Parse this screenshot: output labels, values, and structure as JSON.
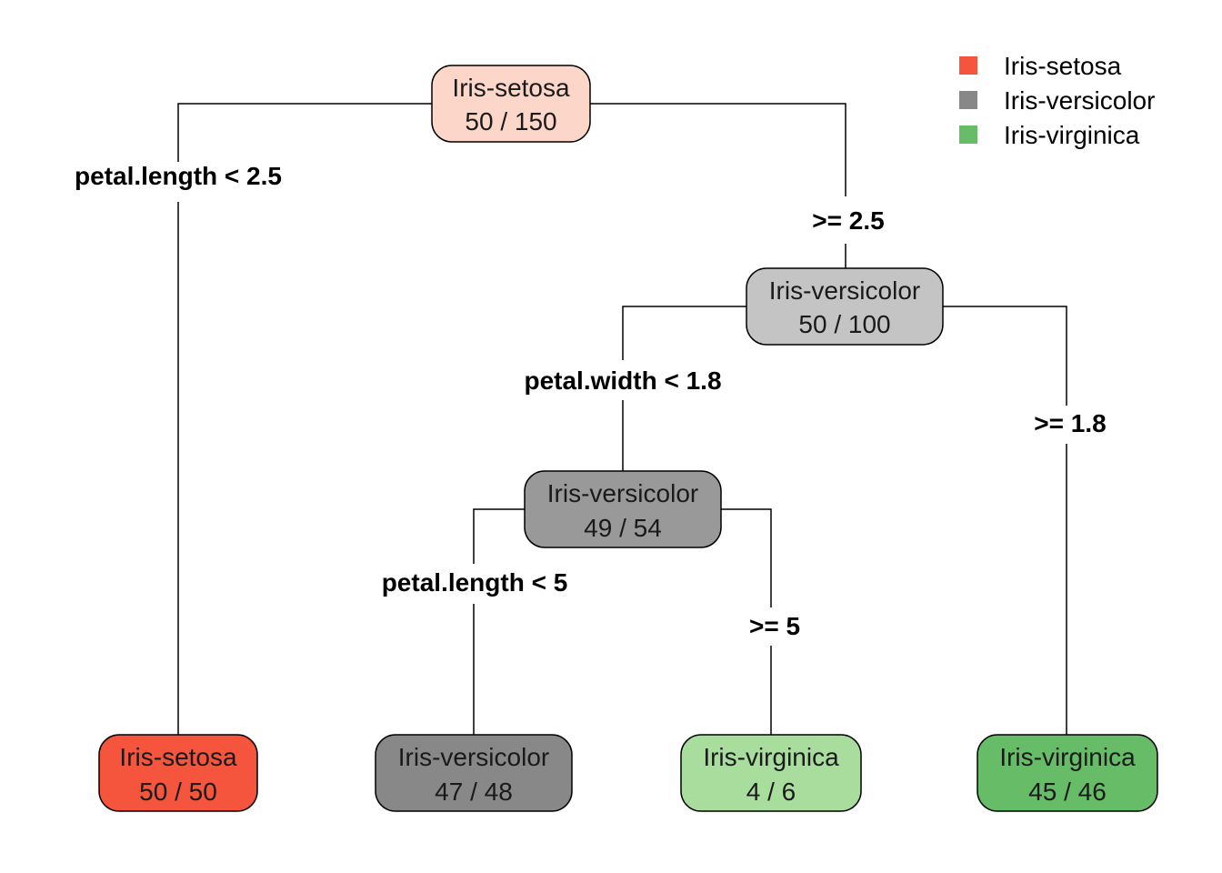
{
  "legend": [
    {
      "label": "Iris-setosa",
      "color": "#F5553C"
    },
    {
      "label": "Iris-versicolor",
      "color": "#888888"
    },
    {
      "label": "Iris-virginica",
      "color": "#67BC67"
    }
  ],
  "nodes": {
    "root": {
      "class": "Iris-setosa",
      "counts": "50 / 150",
      "fill": "#FCD6C8"
    },
    "n2": {
      "class": "Iris-versicolor",
      "counts": "50 / 100",
      "fill": "#C4C4C4"
    },
    "n3": {
      "class": "Iris-versicolor",
      "counts": "49 / 54",
      "fill": "#999999"
    },
    "leaf1": {
      "class": "Iris-setosa",
      "counts": "50 / 50",
      "fill": "#F5553C"
    },
    "leaf2": {
      "class": "Iris-versicolor",
      "counts": "47 / 48",
      "fill": "#888888"
    },
    "leaf3": {
      "class": "Iris-virginica",
      "counts": "4 / 6",
      "fill": "#A8DD9E"
    },
    "leaf4": {
      "class": "Iris-virginica",
      "counts": "45 / 46",
      "fill": "#67BC67"
    }
  },
  "splits": {
    "root_left": "petal.length < 2.5",
    "root_right": ">= 2.5",
    "n2_left": "petal.width < 1.8",
    "n2_right": ">= 1.8",
    "n3_left": "petal.length < 5",
    "n3_right": ">= 5"
  }
}
